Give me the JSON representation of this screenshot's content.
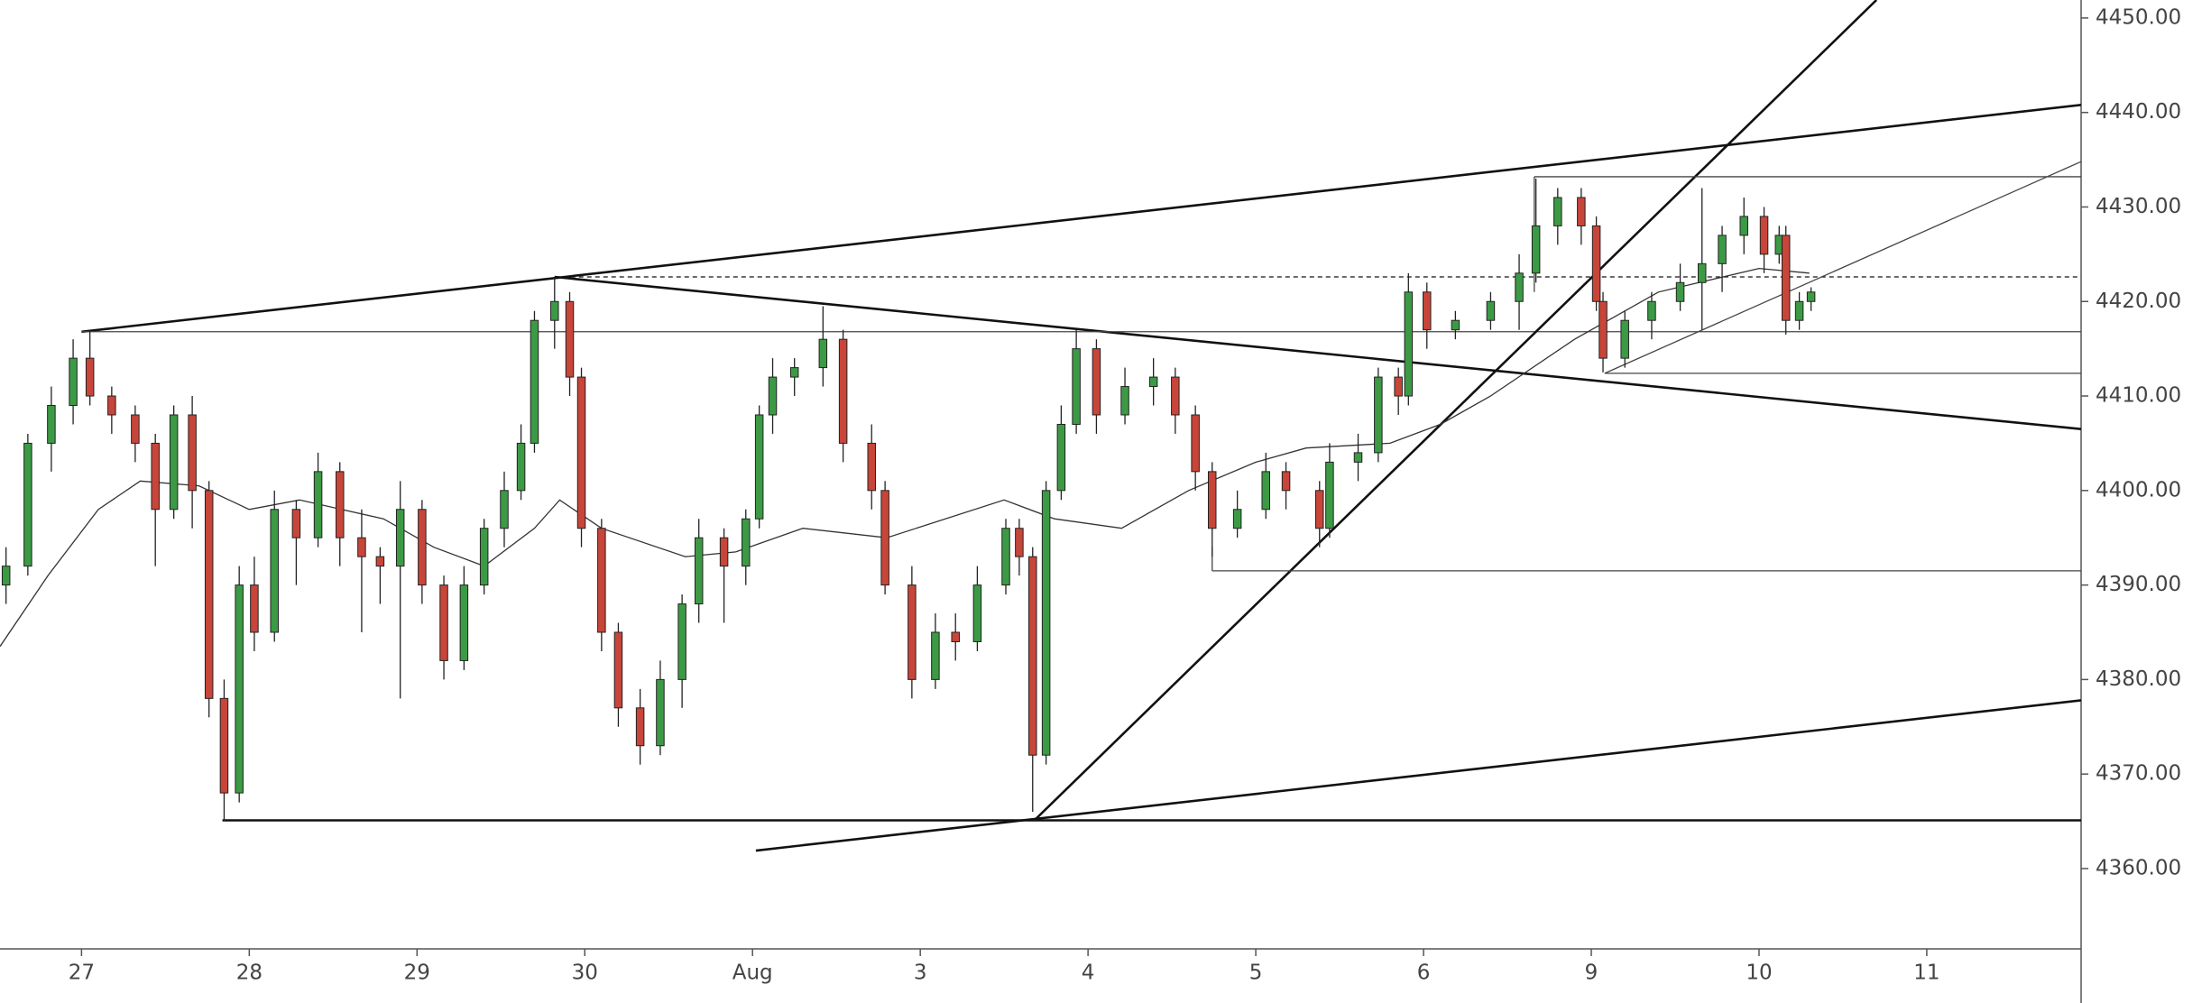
{
  "chart_data": {
    "type": "candlestick",
    "xlim": [
      -0.486,
      11.92
    ],
    "ylim": [
      4351.5,
      4451.9
    ],
    "xticks": [
      {
        "value": 0,
        "label": "27"
      },
      {
        "value": 1,
        "label": "28"
      },
      {
        "value": 2,
        "label": "29"
      },
      {
        "value": 3,
        "label": "30"
      },
      {
        "value": 4,
        "label": "Aug"
      },
      {
        "value": 5,
        "label": "3"
      },
      {
        "value": 6,
        "label": "4"
      },
      {
        "value": 7,
        "label": "5"
      },
      {
        "value": 8,
        "label": "6"
      },
      {
        "value": 9,
        "label": "9"
      },
      {
        "value": 10,
        "label": "10"
      },
      {
        "value": 11,
        "label": "11"
      }
    ],
    "yticks": [
      {
        "value": 4360,
        "label": "4360.00"
      },
      {
        "value": 4370,
        "label": "4370.00"
      },
      {
        "value": 4380,
        "label": "4380.00"
      },
      {
        "value": 4390,
        "label": "4390.00"
      },
      {
        "value": 4400,
        "label": "4400.00"
      },
      {
        "value": 4410,
        "label": "4410.00"
      },
      {
        "value": 4420,
        "label": "4420.00"
      },
      {
        "value": 4430,
        "label": "4430.00"
      },
      {
        "value": 4440,
        "label": "4440.00"
      },
      {
        "value": 4450,
        "label": "4450.00"
      }
    ],
    "up_color": "#3c9a45",
    "down_color": "#c8453a",
    "wick_color": "#222222",
    "x": [
      -0.45,
      -0.32,
      -0.18,
      -0.05,
      0.05,
      0.18,
      0.32,
      0.44,
      0.55,
      0.66,
      0.76,
      0.85,
      0.94,
      1.03,
      1.15,
      1.28,
      1.41,
      1.54,
      1.67,
      1.78,
      1.9,
      2.03,
      2.16,
      2.28,
      2.4,
      2.52,
      2.62,
      2.7,
      2.82,
      2.91,
      2.98,
      3.1,
      3.2,
      3.33,
      3.45,
      3.58,
      3.68,
      3.83,
      3.96,
      4.04,
      4.12,
      4.25,
      4.42,
      4.54,
      4.71,
      4.79,
      4.95,
      5.09,
      5.21,
      5.34,
      5.51,
      5.59,
      5.67,
      5.75,
      5.84,
      5.93,
      6.05,
      6.22,
      6.39,
      6.52,
      6.64,
      6.74,
      6.89,
      7.06,
      7.18,
      7.38,
      7.44,
      7.61,
      7.73,
      7.85,
      7.91,
      8.02,
      8.19,
      8.4,
      8.57,
      8.67,
      8.8,
      8.94,
      9.03,
      9.07,
      9.2,
      9.36,
      9.53,
      9.66,
      9.78,
      9.91,
      10.03,
      10.12,
      10.16,
      10.24,
      10.31
    ],
    "open": [
      4390,
      4392,
      4405,
      4409,
      4414,
      4410,
      4408,
      4405,
      4398,
      4408,
      4400,
      4378,
      4368,
      4390,
      4385,
      4398,
      4395,
      4402,
      4395,
      4393,
      4392,
      4398,
      4390,
      4382,
      4390,
      4396,
      4400,
      4405,
      4418,
      4420,
      4412,
      4396,
      4385,
      4377,
      4373,
      4380,
      4388,
      4395,
      4392,
      4397,
      4408,
      4412,
      4413,
      4416,
      4405,
      4400,
      4390,
      4380,
      4385,
      4384,
      4390,
      4396,
      4393,
      4372,
      4400,
      4407,
      4415,
      4408,
      4411,
      4412,
      4408,
      4402,
      4396,
      4398,
      4402,
      4400,
      4396,
      4403,
      4404,
      4412,
      4410,
      4421,
      4417,
      4418,
      4420,
      4423,
      4428,
      4431,
      4428,
      4420,
      4414,
      4418,
      4420,
      4422,
      4424,
      4427,
      4429,
      4425,
      4427,
      4418,
      4420
    ],
    "high": [
      4394,
      4406,
      4411,
      4416,
      4417,
      4411,
      4409,
      4406,
      4409,
      4410,
      4401,
      4380,
      4392,
      4393,
      4400,
      4399,
      4404,
      4403,
      4398,
      4394,
      4401,
      4399,
      4391,
      4392,
      4397,
      4402,
      4407,
      4419,
      4422.5,
      4421,
      4413,
      4397,
      4386,
      4379,
      4382,
      4389,
      4397,
      4396,
      4398,
      4409,
      4414,
      4414,
      4419.5,
      4417,
      4407,
      4401,
      4392,
      4387,
      4387,
      4392,
      4397,
      4397,
      4394,
      4401,
      4409,
      4417,
      4416,
      4413,
      4414,
      4413,
      4409,
      4403,
      4400,
      4404,
      4403,
      4401,
      4405,
      4406,
      4413,
      4413,
      4423,
      4422,
      4419,
      4421,
      4425,
      4433,
      4432,
      4432,
      4429,
      4421,
      4419,
      4421,
      4424,
      4432,
      4428,
      4431,
      4430,
      4428,
      4428,
      4421,
      4421.5
    ],
    "low": [
      4388,
      4391,
      4402,
      4407,
      4409,
      4406,
      4403,
      4392,
      4397,
      4396,
      4376,
      4365,
      4367,
      4383,
      4384,
      4390,
      4394,
      4392,
      4385,
      4388,
      4378,
      4388,
      4380,
      4381,
      4389,
      4394,
      4399,
      4404,
      4415,
      4410,
      4394,
      4383,
      4375,
      4371,
      4372,
      4377,
      4386,
      4386,
      4390,
      4396,
      4406,
      4410,
      4411,
      4403,
      4398,
      4389,
      4378,
      4379,
      4382,
      4383,
      4389,
      4391,
      4366,
      4371,
      4399,
      4406,
      4406,
      4407,
      4409,
      4406,
      4400,
      4393,
      4395,
      4397,
      4398,
      4394,
      4395,
      4401,
      4403,
      4408,
      4409,
      4415,
      4416,
      4417,
      4417,
      4422,
      4426,
      4426,
      4419,
      4412.5,
      4413,
      4416,
      4419,
      4417,
      4421,
      4425,
      4423,
      4424,
      4416.5,
      4417,
      4419
    ],
    "close": [
      4392,
      4405,
      4409,
      4414,
      4410,
      4408,
      4405,
      4398,
      4408,
      4400,
      4378,
      4368,
      4390,
      4385,
      4398,
      4395,
      4402,
      4395,
      4393,
      4392,
      4398,
      4390,
      4382,
      4390,
      4396,
      4400,
      4405,
      4418,
      4420,
      4412,
      4396,
      4385,
      4377,
      4373,
      4380,
      4388,
      4395,
      4392,
      4397,
      4408,
      4412,
      4413,
      4416,
      4405,
      4400,
      4390,
      4380,
      4385,
      4384,
      4390,
      4396,
      4393,
      4372,
      4400,
      4407,
      4415,
      4408,
      4411,
      4412,
      4408,
      4402,
      4396,
      4398,
      4402,
      4400,
      4396,
      4403,
      4404,
      4412,
      4410,
      4421,
      4417,
      4418,
      4420,
      4423,
      4428,
      4431,
      4428,
      4420,
      4414,
      4418,
      4420,
      4422,
      4424,
      4427,
      4429,
      4425,
      4427,
      4418,
      4420,
      4421
    ],
    "moving_average": {
      "color": "#333333",
      "x": [
        -0.486,
        -0.2,
        0.1,
        0.35,
        0.7,
        1.0,
        1.3,
        1.8,
        2.1,
        2.4,
        2.7,
        2.85,
        3.1,
        3.6,
        3.9,
        4.3,
        4.8,
        5.5,
        5.8,
        6.2,
        6.6,
        7.0,
        7.3,
        7.8,
        8.1,
        8.4,
        8.9,
        9.4,
        10.0,
        10.3
      ],
      "values": [
        4383.5,
        4391,
        4398,
        4401,
        4400.5,
        4398,
        4399,
        4397,
        4394,
        4392,
        4396,
        4399,
        4396,
        4393,
        4393.5,
        4396,
        4395,
        4399,
        4397,
        4396,
        4400,
        4403,
        4404.5,
        4405,
        4407,
        4410,
        4416,
        4421,
        4423.5,
        4423
      ]
    },
    "drawings": [
      {
        "x": [
          0,
          11.92
        ],
        "y": [
          4416.8,
          4440.8
        ],
        "style": "thick"
      },
      {
        "x": [
          2.82,
          11.92
        ],
        "y": [
          4422.6,
          4406.5
        ],
        "style": "thick"
      },
      {
        "x": [
          0,
          11.92
        ],
        "y": [
          4416.8,
          4416.8
        ],
        "style": "thin"
      },
      {
        "x": [
          2.82,
          11.92
        ],
        "y": [
          4422.6,
          4422.6
        ],
        "style": "dotted"
      },
      {
        "x": [
          5.68,
          10.7
        ],
        "y": [
          4365.1,
          4451.9
        ],
        "style": "thick"
      },
      {
        "x": [
          0.84,
          11.92
        ],
        "y": [
          4365.1,
          4365.1
        ],
        "style": "thick"
      },
      {
        "x": [
          4.02,
          11.92
        ],
        "y": [
          4361.9,
          4377.8
        ],
        "style": "thick"
      },
      {
        "x": [
          8.66,
          11.92
        ],
        "y": [
          4433.2,
          4433.2
        ],
        "style": "thin"
      },
      {
        "x": [
          8.66,
          8.66
        ],
        "y": [
          4433.2,
          4421
        ],
        "style": "thin"
      },
      {
        "x": [
          9.08,
          11.92
        ],
        "y": [
          4412.4,
          4412.4
        ],
        "style": "thin"
      },
      {
        "x": [
          9.08,
          11.92
        ],
        "y": [
          4412.4,
          4434.8
        ],
        "style": "thin"
      },
      {
        "x": [
          6.74,
          11.92
        ],
        "y": [
          4391.5,
          4391.5
        ],
        "style": "thin"
      },
      {
        "x": [
          6.74,
          6.74
        ],
        "y": [
          4391.5,
          4394
        ],
        "style": "thin"
      }
    ]
  }
}
